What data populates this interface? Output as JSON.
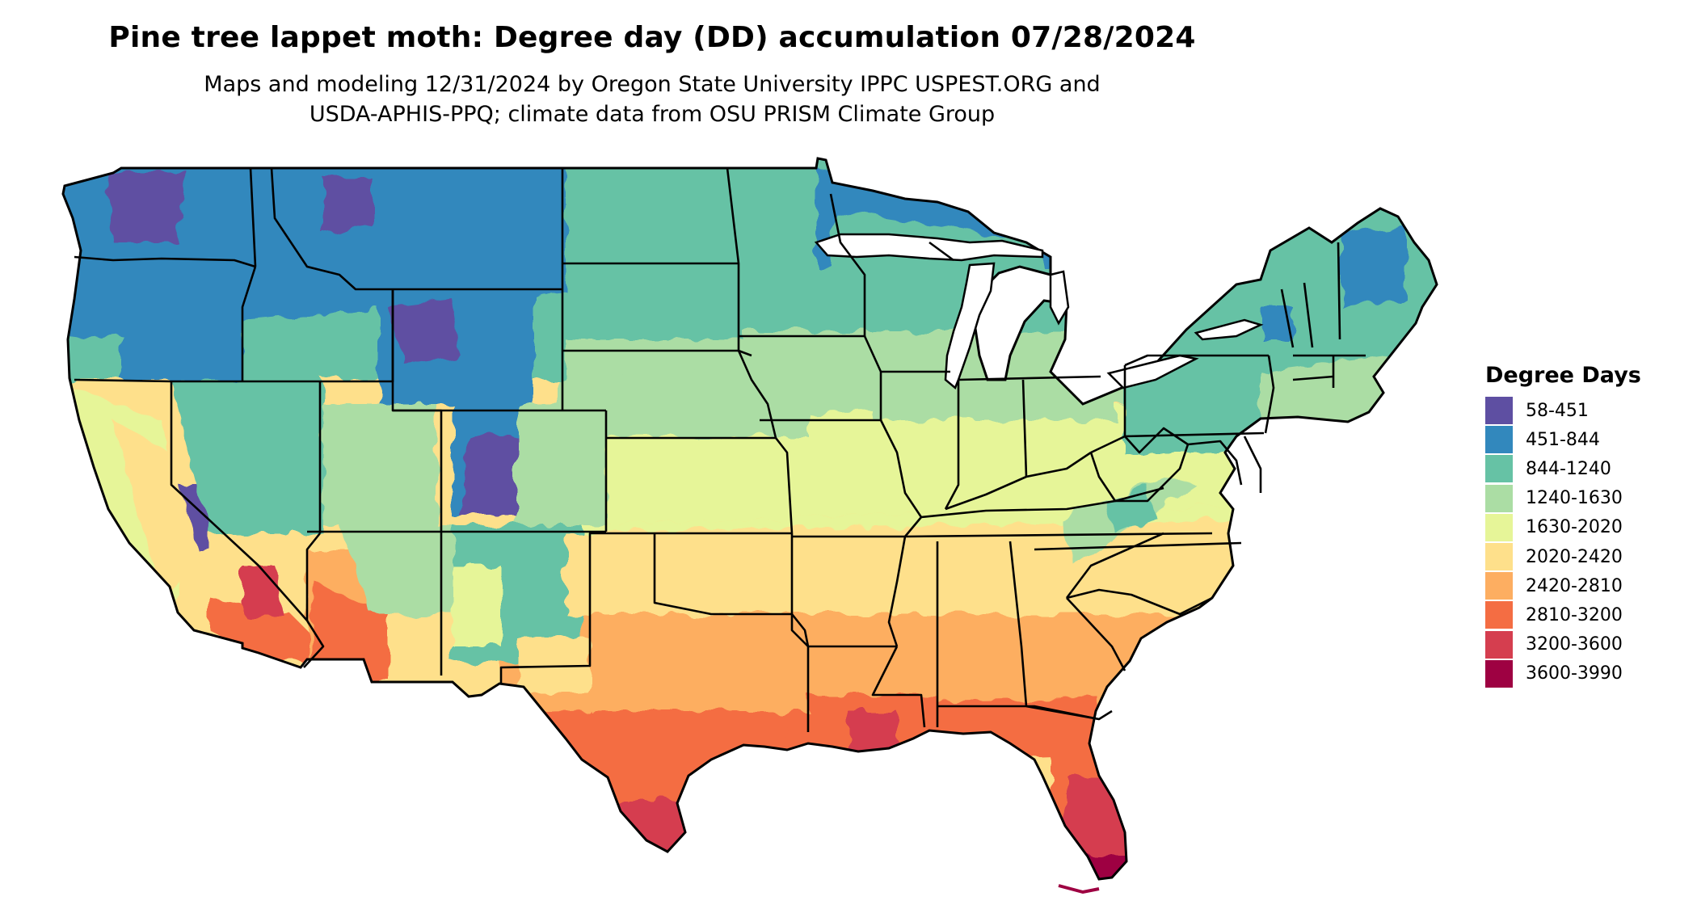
{
  "title": "Pine tree lappet moth: Degree day (DD) accumulation 07/28/2024",
  "subtitle_line1": "Maps and modeling 12/31/2024 by Oregon State University IPPC USPEST.ORG and",
  "subtitle_line2": "USDA-APHIS-PPQ; climate data from OSU PRISM Climate Group",
  "legend": {
    "title": "Degree Days",
    "items": [
      {
        "label": "58-451",
        "color": "#5e4fa2"
      },
      {
        "label": "451-844",
        "color": "#3288bd"
      },
      {
        "label": "844-1240",
        "color": "#66c2a5"
      },
      {
        "label": "1240-1630",
        "color": "#abdda4"
      },
      {
        "label": "1630-2020",
        "color": "#e6f598"
      },
      {
        "label": "2020-2420",
        "color": "#fee08b"
      },
      {
        "label": "2420-2810",
        "color": "#fdae61"
      },
      {
        "label": "2810-3200",
        "color": "#f46d43"
      },
      {
        "label": "3200-3600",
        "color": "#d53e4f"
      },
      {
        "label": "3600-3990",
        "color": "#9e0142"
      }
    ]
  },
  "map": {
    "region": "contiguous-united-states",
    "boundaries": "state-lines"
  }
}
